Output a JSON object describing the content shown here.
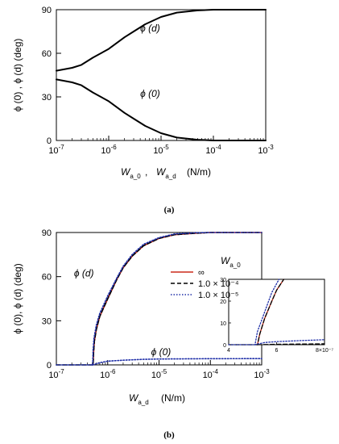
{
  "chart_data": [
    {
      "panel_label": "(a)",
      "type": "line",
      "x_scale": "log",
      "xlim": [
        1e-07,
        0.001
      ],
      "ylim": [
        0,
        90
      ],
      "x_ticks": [
        1e-07,
        1e-06,
        1e-05,
        0.0001,
        0.001
      ],
      "x_tick_labels": [
        [
          "10",
          "-7"
        ],
        [
          "10",
          "-6"
        ],
        [
          "10",
          "-5"
        ],
        [
          "10",
          "-4"
        ],
        [
          "10",
          "-3"
        ]
      ],
      "y_ticks": [
        0,
        30,
        60,
        90
      ],
      "y_tick_labels": [
        "0",
        "30",
        "60",
        "90"
      ],
      "xlabel": {
        "w1": "W",
        "s1": "a_0",
        "sep": " , ",
        "w2": "W",
        "s2": "a_d",
        "unit": "(N/m)"
      },
      "ylabel": "ϕ (0) , ϕ (d)  (deg)",
      "series": [
        {
          "name": "ϕ (d)",
          "color": "#000000",
          "dash": "solid",
          "x": [
            1e-07,
            2e-07,
            3e-07,
            5e-07,
            1e-06,
            2e-06,
            3e-06,
            5e-06,
            1e-05,
            2e-05,
            5e-05,
            0.0001,
            0.0003,
            0.001
          ],
          "y": [
            48,
            50,
            52,
            57,
            63,
            71,
            75,
            80,
            85,
            88,
            89.5,
            90,
            90,
            90
          ]
        },
        {
          "name": "ϕ (0)",
          "color": "#000000",
          "dash": "solid",
          "x": [
            1e-07,
            2e-07,
            3e-07,
            5e-07,
            1e-06,
            2e-06,
            3e-06,
            5e-06,
            1e-05,
            2e-05,
            5e-05,
            0.0001,
            0.0003,
            0.001
          ],
          "y": [
            42,
            40,
            38,
            33,
            27,
            19,
            15,
            10,
            5,
            2,
            0.5,
            0,
            0,
            0
          ]
        }
      ],
      "annotations": [
        {
          "text": "ϕ (d)",
          "x": 4e-06,
          "y": 75
        },
        {
          "text": "ϕ (0)",
          "x": 4e-06,
          "y": 30
        }
      ]
    },
    {
      "panel_label": "(b)",
      "type": "line",
      "x_scale": "log",
      "xlim": [
        1e-07,
        0.001
      ],
      "ylim": [
        0,
        90
      ],
      "x_ticks": [
        1e-07,
        1e-06,
        1e-05,
        0.0001,
        0.001
      ],
      "x_tick_labels": [
        [
          "10",
          "-7"
        ],
        [
          "10",
          "-6"
        ],
        [
          "10",
          "-5"
        ],
        [
          "10",
          "-4"
        ],
        [
          "10",
          "-3"
        ]
      ],
      "y_ticks": [
        0,
        30,
        60,
        90
      ],
      "y_tick_labels": [
        "0",
        "30",
        "60",
        "90"
      ],
      "xlabel": {
        "w1": "W",
        "s1": "a_d",
        "unit": "(N/m)"
      },
      "ylabel": "ϕ (0), ϕ (d)  (deg)",
      "legend": {
        "title_w": "W",
        "title_s": "a_0",
        "placement": "right",
        "entries": [
          "∞",
          "1.0 × 10⁻⁴",
          "1.0 × 10⁻⁵"
        ]
      },
      "series": [
        {
          "name": "∞",
          "color": "#cc2a1a",
          "dash": "solid",
          "x": [
            5.2e-07,
            5.3e-07,
            5.5e-07,
            6e-07,
            7e-07,
            1e-06,
            1.5e-06,
            2e-06,
            3e-06,
            5e-06,
            1e-05,
            2e-05,
            5e-05,
            0.0001,
            0.001
          ],
          "y": [
            0,
            8,
            16,
            24,
            33,
            45,
            58,
            66,
            74,
            81,
            86,
            88.5,
            89.5,
            90,
            90
          ]
        },
        {
          "name": "1.0 × 10⁻⁴",
          "color": "#000000",
          "dash": "dashed",
          "x": [
            1e-07,
            5.2e-07,
            5.3e-07,
            5.5e-07,
            6e-07,
            7e-07,
            1e-06,
            1.5e-06,
            2e-06,
            3e-06,
            5e-06,
            1e-05,
            2e-05,
            5e-05,
            0.0001,
            0.001
          ],
          "y": [
            0,
            0,
            8,
            16,
            24,
            33,
            45,
            58,
            66,
            74,
            81,
            86,
            88.5,
            89.5,
            90,
            90
          ]
        },
        {
          "name": "1.0 × 10⁻⁵",
          "color": "#1f2fa8",
          "dash": "dotted",
          "x": [
            1e-07,
            5.1e-07,
            5.2e-07,
            5.4e-07,
            6e-07,
            7e-07,
            1e-06,
            1.5e-06,
            2e-06,
            3e-06,
            5e-06,
            1e-05,
            2e-05,
            5e-05,
            0.0001,
            0.001
          ],
          "y": [
            0,
            0,
            10,
            18,
            27,
            35,
            47,
            59,
            67,
            75,
            82,
            86.5,
            89,
            89.8,
            90,
            90
          ]
        },
        {
          "name": "1.0 × 10⁻⁵ ϕ (0)",
          "color": "#1f2fa8",
          "dash": "dotted",
          "x": [
            5.1e-07,
            7e-07,
            1e-06,
            2e-06,
            5e-06,
            1e-05,
            0.0001,
            0.001
          ],
          "y": [
            0,
            1.5,
            2.5,
            3.2,
            3.8,
            4.0,
            4.2,
            4.3
          ]
        }
      ],
      "annotations": [
        {
          "text": "ϕ (d)",
          "x": 2.2e-07,
          "y": 60
        },
        {
          "text": "ϕ (0)",
          "x": 7e-06,
          "y": 6.5
        }
      ],
      "inset": {
        "type": "line",
        "xlim": [
          4e-07,
          8e-07
        ],
        "ylim": [
          0,
          30
        ],
        "x_ticks": [
          4e-07,
          6e-07,
          8e-07
        ],
        "x_tick_labels": [
          "4",
          "6",
          "8×10⁻⁷"
        ],
        "y_ticks": [
          0,
          10,
          20,
          30
        ],
        "y_tick_labels": [
          "0",
          "10",
          "20",
          "30"
        ],
        "series": [
          {
            "name": "∞",
            "color": "#cc2a1a",
            "dash": "solid",
            "x": [
              5.2e-07,
              5.3e-07,
              5.5e-07,
              5.8e-07,
              6e-07,
              6.3e-07
            ],
            "y": [
              0,
              5,
              12,
              20,
              25,
              30
            ]
          },
          {
            "name": "1.0 × 10⁻⁴",
            "color": "#000000",
            "dash": "dashed",
            "x": [
              4e-07,
              5.2e-07,
              5.3e-07,
              5.5e-07,
              5.8e-07,
              6e-07,
              6.3e-07
            ],
            "y": [
              0,
              0,
              5,
              12,
              20,
              25,
              30
            ]
          },
          {
            "name": "1.0 × 10⁻⁴ ϕ (0)",
            "color": "#000000",
            "dash": "dashed",
            "x": [
              5.2e-07,
              6e-07,
              7e-07,
              8e-07
            ],
            "y": [
              0,
              0.2,
              0.3,
              0.4
            ]
          },
          {
            "name": "1.0 × 10⁻⁵",
            "color": "#1f2fa8",
            "dash": "dotted",
            "x": [
              4e-07,
              5.1e-07,
              5.2e-07,
              5.4e-07,
              5.6e-07,
              5.8e-07,
              6.1e-07
            ],
            "y": [
              0,
              0,
              6,
              12,
              18,
              24,
              30
            ]
          },
          {
            "name": "1.0 × 10⁻⁵ ϕ (0)",
            "color": "#1f2fa8",
            "dash": "dotted",
            "x": [
              5.1e-07,
              5.5e-07,
              6e-07,
              7e-07,
              8e-07
            ],
            "y": [
              0,
              1.0,
              1.4,
              1.9,
              2.3
            ]
          }
        ]
      }
    }
  ]
}
